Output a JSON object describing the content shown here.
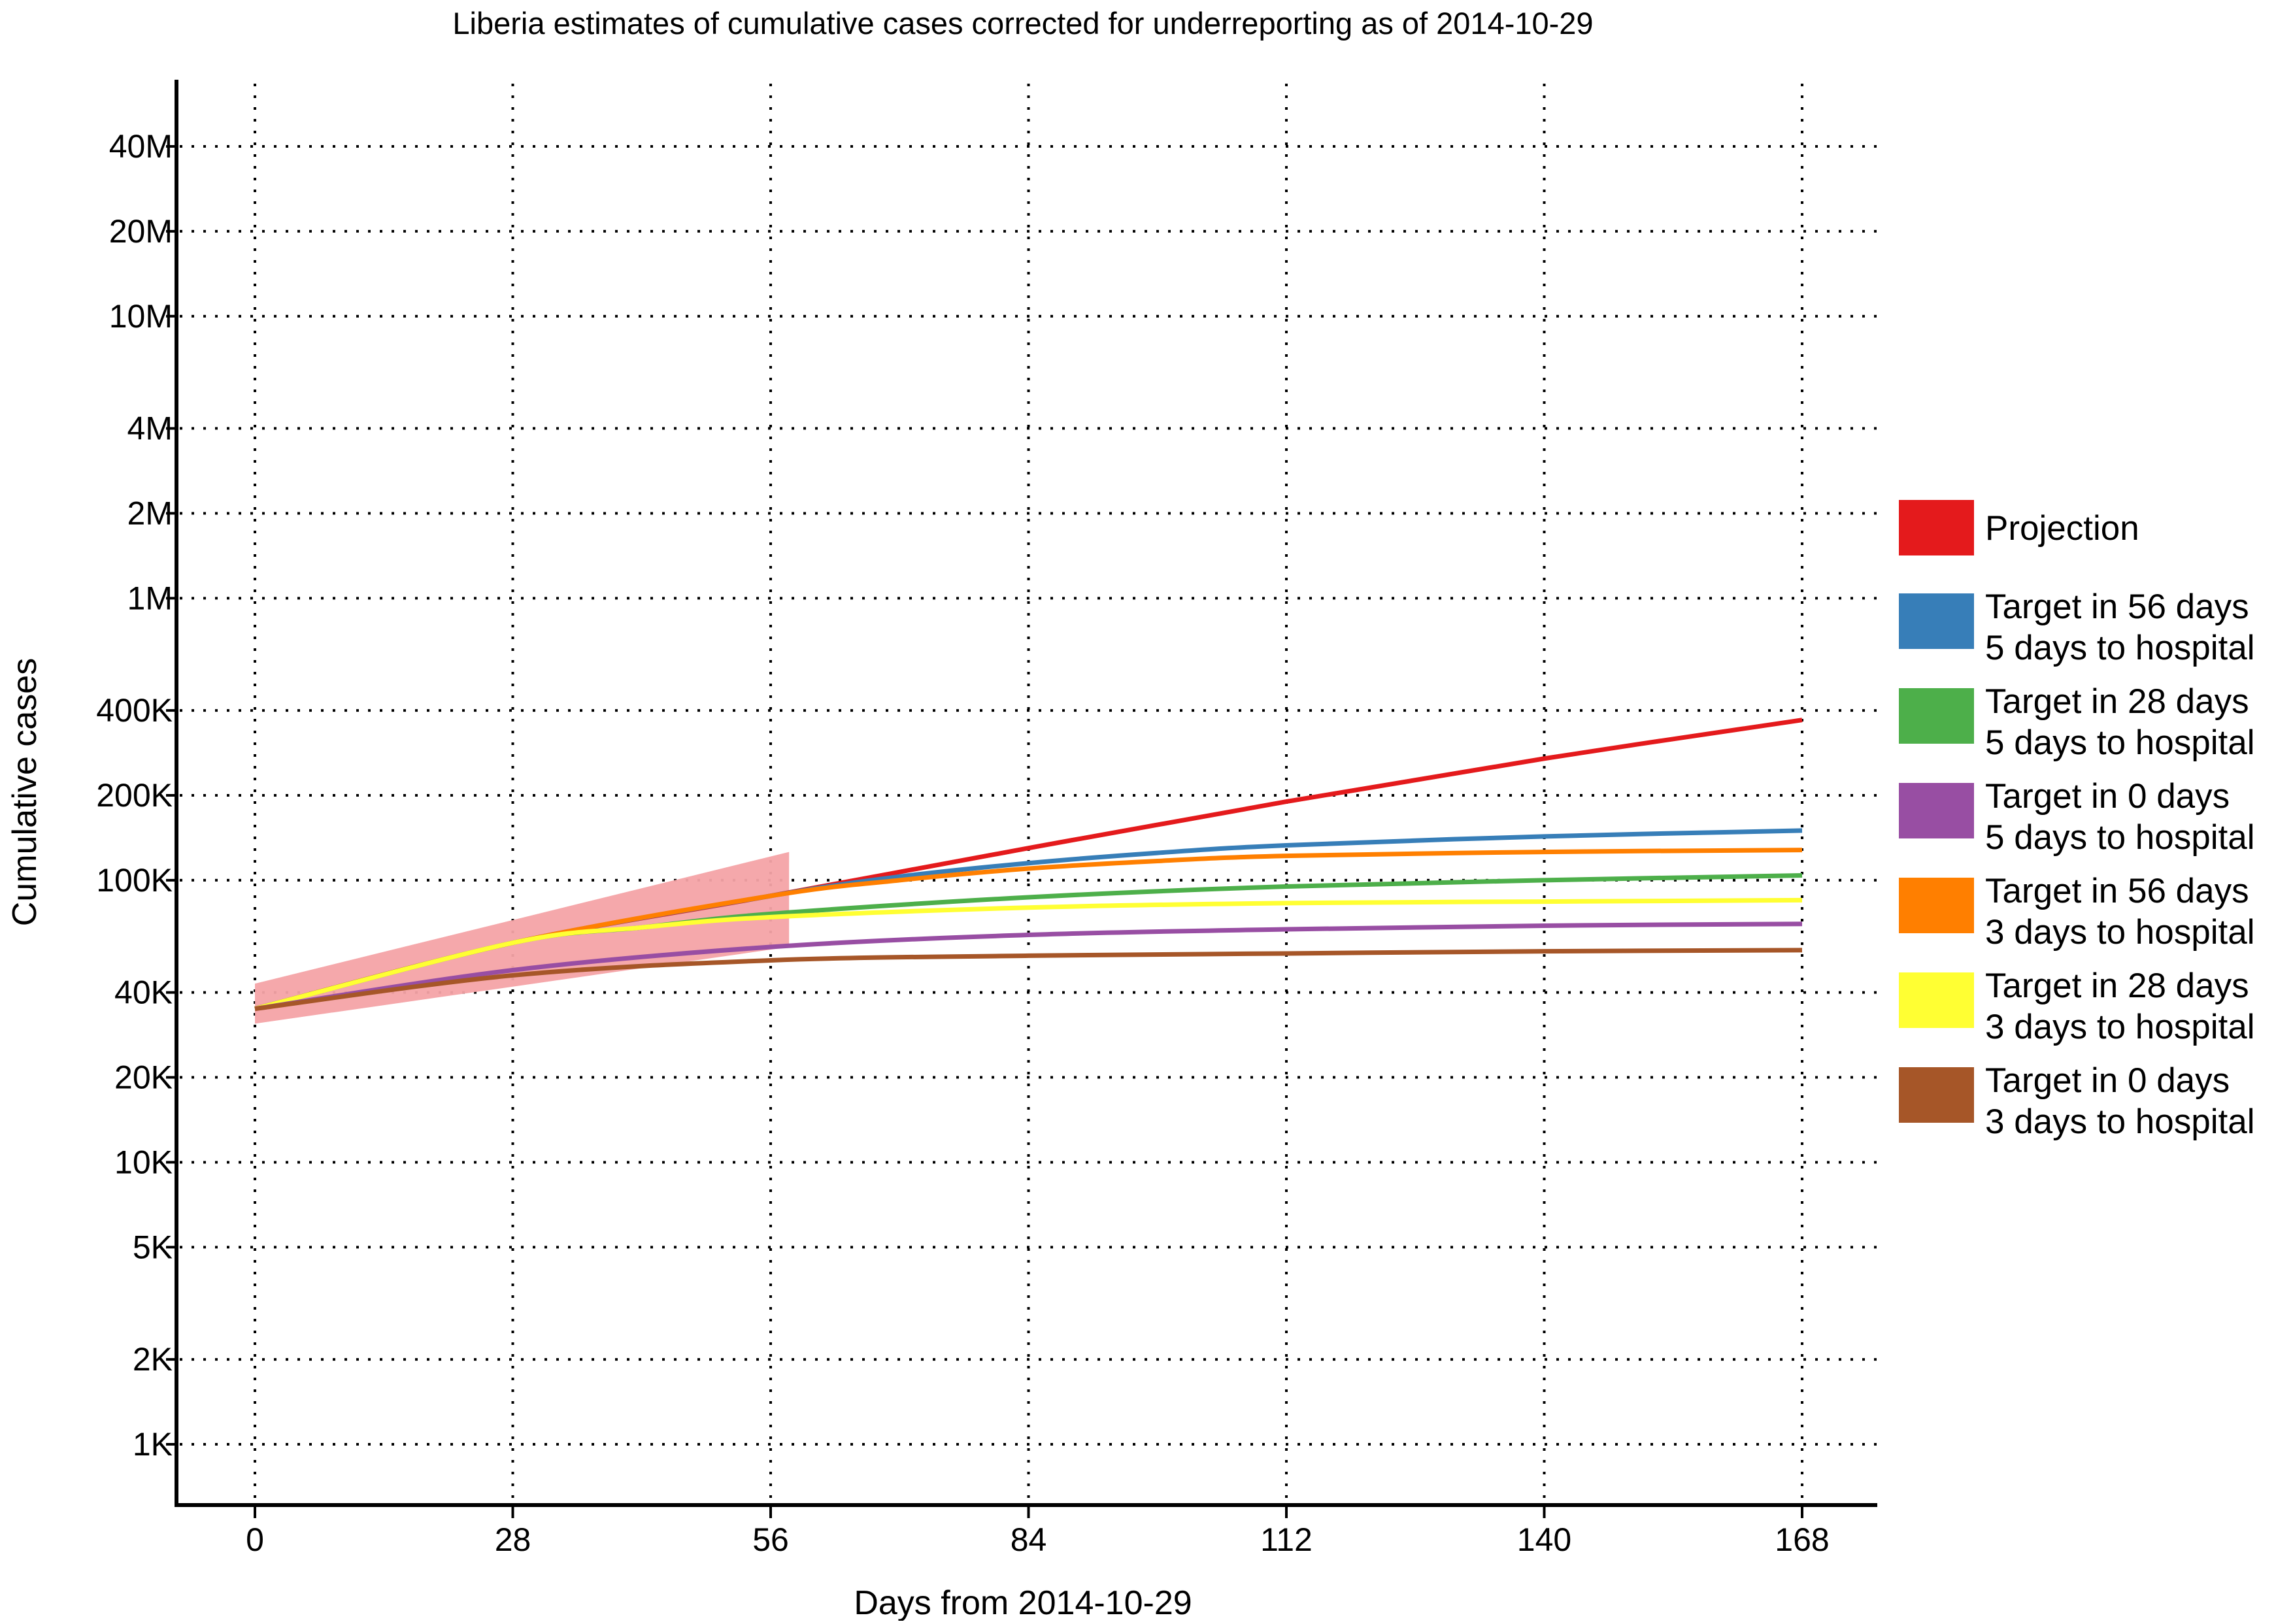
{
  "chart_data": {
    "type": "line",
    "title": "Liberia estimates of cumulative cases corrected for underreporting as of 2014-10-29",
    "xlabel": "Days from 2014-10-29",
    "ylabel": "Cumulative cases",
    "x_scale": "linear",
    "y_scale": "log",
    "xlim": [
      -8.5,
      176
    ],
    "ylim": [
      500,
      80000000
    ],
    "x_ticks": [
      0,
      28,
      56,
      84,
      112,
      140,
      168
    ],
    "x_tick_labels": [
      "0",
      "28",
      "56",
      "84",
      "112",
      "140",
      "168"
    ],
    "y_ticks": [
      1000,
      2000,
      5000,
      10000,
      20000,
      40000,
      100000,
      200000,
      400000,
      1000000,
      2000000,
      4000000,
      10000000,
      20000000,
      40000000
    ],
    "y_tick_labels": [
      "1K",
      "2K",
      "5K",
      "10K",
      "20K",
      "40K",
      "100K",
      "200K",
      "400K",
      "1M",
      "2M",
      "4M",
      "10M",
      "20M",
      "40M"
    ],
    "grid": "dotted",
    "legend_position": "right",
    "confidence_band": {
      "series": "Projection",
      "x": [
        0,
        58
      ],
      "upper": [
        43000,
        126000
      ],
      "lower": [
        31000,
        58000
      ],
      "color": "#f4a3a6"
    },
    "series": [
      {
        "name": "Projection",
        "color": "#e41a1c",
        "x": [
          0,
          28,
          56,
          84,
          112,
          140,
          168
        ],
        "y": [
          35000,
          60000,
          88000,
          130000,
          190000,
          270000,
          370000
        ]
      },
      {
        "name": "Target in 56 days\n5 days to hospital",
        "color": "#377eb8",
        "x": [
          0,
          28,
          56,
          70,
          84,
          98,
          112,
          140,
          168
        ],
        "y": [
          35000,
          60000,
          88000,
          103000,
          115000,
          125000,
          133000,
          143000,
          150000
        ]
      },
      {
        "name": "Target in 28 days\n5 days to hospital",
        "color": "#4daf4a",
        "x": [
          0,
          28,
          42,
          56,
          84,
          112,
          140,
          168
        ],
        "y": [
          35000,
          60000,
          68000,
          76000,
          87000,
          95000,
          100000,
          104000
        ]
      },
      {
        "name": "Target in 0 days\n5 days to hospital",
        "color": "#984ea3",
        "x": [
          0,
          28,
          56,
          84,
          112,
          140,
          168
        ],
        "y": [
          35000,
          48000,
          58000,
          64000,
          67000,
          69000,
          70000
        ]
      },
      {
        "name": "Target in 56 days\n3 days to hospital",
        "color": "#ff7f00",
        "x": [
          0,
          28,
          56,
          70,
          84,
          98,
          112,
          140,
          168
        ],
        "y": [
          35000,
          60000,
          88000,
          100000,
          110000,
          117000,
          122000,
          126000,
          128000
        ]
      },
      {
        "name": "Target in 28 days\n3 days to hospital",
        "color": "#ffff33",
        "x": [
          0,
          28,
          42,
          56,
          84,
          112,
          140,
          168
        ],
        "y": [
          35000,
          60000,
          68000,
          74000,
          80000,
          83000,
          84000,
          85000
        ]
      },
      {
        "name": "Target in 0 days\n3 days to hospital",
        "color": "#a65628",
        "x": [
          0,
          28,
          56,
          84,
          112,
          140,
          168
        ],
        "y": [
          35000,
          46000,
          52000,
          54000,
          55000,
          56000,
          56500
        ]
      }
    ],
    "legend": [
      {
        "lines": [
          "Projection"
        ],
        "color": "#e41a1c"
      },
      {
        "lines": [
          "Target in 56 days",
          "5 days to hospital"
        ],
        "color": "#377eb8"
      },
      {
        "lines": [
          "Target in 28 days",
          "5 days to hospital"
        ],
        "color": "#4daf4a"
      },
      {
        "lines": [
          "Target in 0 days",
          "5 days to hospital"
        ],
        "color": "#984ea3"
      },
      {
        "lines": [
          "Target in 56 days",
          "3 days to hospital"
        ],
        "color": "#ff7f00"
      },
      {
        "lines": [
          "Target in 28 days",
          "3 days to hospital"
        ],
        "color": "#ffff33"
      },
      {
        "lines": [
          "Target in 0 days",
          "3 days to hospital"
        ],
        "color": "#a65628"
      }
    ]
  }
}
